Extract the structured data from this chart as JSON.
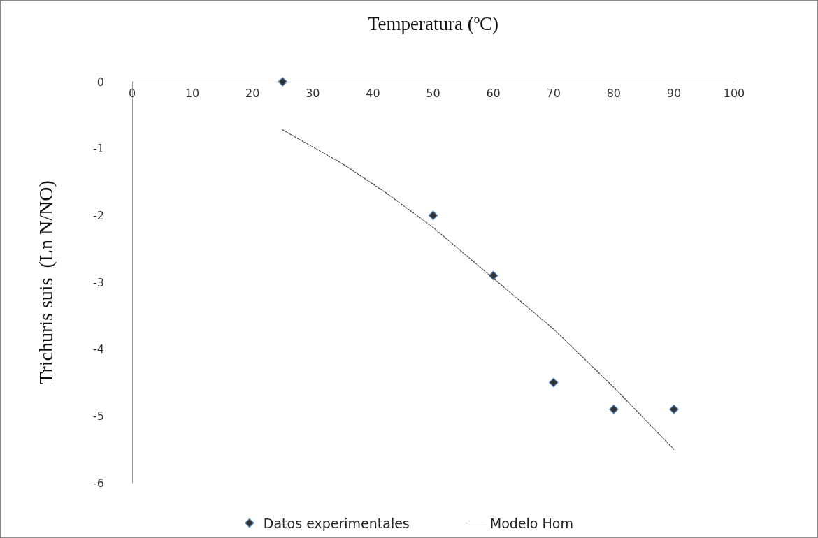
{
  "chart_data": {
    "type": "scatter",
    "xlabel": "Temperatura (ºC)",
    "ylabel": "Trichuris suis  (Ln N/NO)",
    "xlim": [
      0,
      100
    ],
    "xticks": [
      0,
      10,
      20,
      30,
      40,
      50,
      60,
      70,
      80,
      90,
      100
    ],
    "ylim": [
      -6,
      0
    ],
    "yticks": [
      -6,
      -5,
      -4,
      -3,
      -2,
      -1,
      0
    ],
    "grid": false,
    "legend": "bottom",
    "marker": "diamond",
    "series": [
      {
        "name": "Datos experimentales",
        "color": "#000000",
        "x": [
          25,
          50,
          60,
          70,
          80,
          90
        ],
        "values": [
          0,
          -2,
          -2.9,
          -4.5,
          -4.9,
          -4.9
        ]
      },
      {
        "name": "Modelo Hom",
        "type": "line",
        "color": "#404040",
        "line_style": "dotted",
        "marker": "none",
        "x": [
          25,
          35,
          42,
          50,
          60,
          70,
          80,
          90
        ],
        "values": [
          -0.72,
          -1.23,
          -1.65,
          -2.18,
          -2.94,
          -3.7,
          -4.57,
          -5.5
        ]
      }
    ]
  }
}
